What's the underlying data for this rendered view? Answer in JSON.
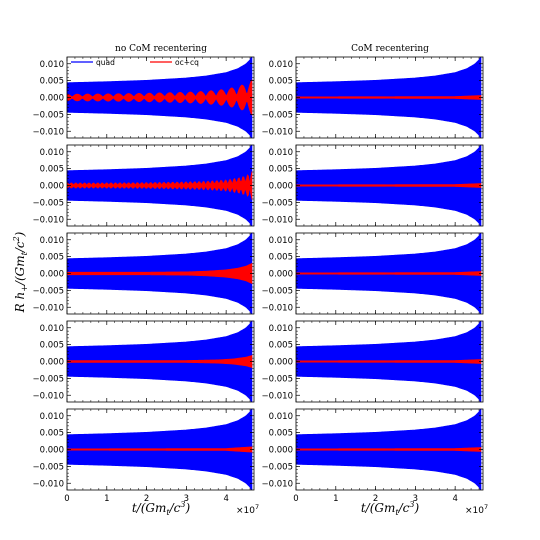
{
  "figure": {
    "col_titles": [
      "no CoM recentering",
      "CoM recentering"
    ],
    "ylabel": "R h+/(Gmt/c²)",
    "ylabel_parts": {
      "main": "R h",
      "sub1": "+",
      "mid": "/(Gm",
      "sub2": "t",
      "end": "/c",
      "sup": "2",
      "close": ")"
    },
    "xlabel_parts": {
      "main": "t/(Gm",
      "sub": "t",
      "end": "/c",
      "sup": "3",
      "close": ")"
    },
    "x_multiplier_parts": {
      "base": "×10",
      "sup": "7"
    },
    "legend": [
      {
        "label": "quad",
        "color": "#0000ff"
      },
      {
        "label": "oc+cq",
        "color": "#ff0000"
      }
    ],
    "colors": {
      "quad": "#0000ff",
      "oc_cq": "#ff0000"
    }
  },
  "chart_data": [
    {
      "type": "line",
      "panel": "row1-left",
      "title": "no CoM recentering",
      "ylim": [
        -0.012,
        0.012
      ],
      "xlim": [
        0,
        4.7
      ],
      "yticks": [
        "0.010",
        "0.005",
        "0.000",
        "−0.005",
        "−0.010"
      ],
      "xticks": [],
      "legend": [
        "quad",
        "oc+cq"
      ],
      "series": [
        {
          "name": "quad",
          "envelope": {
            "x": [
              0,
              1,
              2,
              3,
              3.5,
              4.0,
              4.3,
              4.5,
              4.6,
              4.65
            ],
            "amplitude": [
              0.0044,
              0.0047,
              0.0051,
              0.0058,
              0.0064,
              0.0074,
              0.0086,
              0.01,
              0.0112,
              0.0125
            ]
          }
        },
        {
          "name": "oc+cq",
          "modulated": true,
          "beat_count": 18,
          "envelope": {
            "x": [
              0,
              1,
              2,
              3,
              3.5,
              4.0,
              4.3,
              4.5,
              4.6,
              4.65
            ],
            "amplitude": [
              0.001,
              0.0011,
              0.0013,
              0.0016,
              0.0019,
              0.0025,
              0.0033,
              0.0042,
              0.0048,
              0.0052
            ]
          }
        }
      ]
    },
    {
      "type": "line",
      "panel": "row1-right",
      "title": "CoM recentering",
      "ylim": [
        -0.012,
        0.012
      ],
      "xlim": [
        0,
        4.7
      ],
      "yticks": [
        "0.010",
        "0.005",
        "0.000",
        "−0.005",
        "−0.010"
      ],
      "xticks": [],
      "series": [
        {
          "name": "quad",
          "envelope": {
            "x": [
              0,
              1,
              2,
              3,
              3.5,
              4.0,
              4.3,
              4.5,
              4.6,
              4.65
            ],
            "amplitude": [
              0.0044,
              0.0047,
              0.0051,
              0.0058,
              0.0064,
              0.0074,
              0.0086,
              0.01,
              0.0112,
              0.0125
            ]
          }
        },
        {
          "name": "oc+cq",
          "modulated": false,
          "envelope": {
            "x": [
              0,
              4.0,
              4.65
            ],
            "amplitude": [
              0.0002,
              0.0003,
              0.0006
            ]
          }
        }
      ]
    },
    {
      "type": "line",
      "panel": "row2-left",
      "ylim": [
        -0.012,
        0.012
      ],
      "xlim": [
        0,
        4.7
      ],
      "yticks": [
        "0.010",
        "0.005",
        "0.000",
        "−0.005",
        "−0.010"
      ],
      "xticks": [],
      "series": [
        {
          "name": "quad",
          "envelope": {
            "x": [
              0,
              1,
              2,
              3,
              3.5,
              4.0,
              4.3,
              4.5,
              4.6,
              4.65
            ],
            "amplitude": [
              0.0044,
              0.0047,
              0.0051,
              0.0058,
              0.0064,
              0.0074,
              0.0086,
              0.01,
              0.0112,
              0.0125
            ]
          }
        },
        {
          "name": "oc+cq",
          "modulated": true,
          "beat_count": 42,
          "envelope": {
            "x": [
              0,
              1,
              2,
              3,
              3.5,
              4.0,
              4.3,
              4.5,
              4.6,
              4.65
            ],
            "amplitude": [
              0.0008,
              0.0008,
              0.0009,
              0.0011,
              0.0013,
              0.0017,
              0.0023,
              0.003,
              0.0036,
              0.0042
            ]
          }
        }
      ]
    },
    {
      "type": "line",
      "panel": "row2-right",
      "ylim": [
        -0.012,
        0.012
      ],
      "xlim": [
        0,
        4.7
      ],
      "yticks": [
        "0.010",
        "0.005",
        "0.000",
        "−0.005",
        "−0.010"
      ],
      "xticks": [],
      "series": [
        {
          "name": "quad",
          "envelope": {
            "x": [
              0,
              1,
              2,
              3,
              3.5,
              4.0,
              4.3,
              4.5,
              4.6,
              4.65
            ],
            "amplitude": [
              0.0044,
              0.0047,
              0.0051,
              0.0058,
              0.0064,
              0.0074,
              0.0086,
              0.01,
              0.0112,
              0.0125
            ]
          }
        },
        {
          "name": "oc+cq",
          "modulated": false,
          "envelope": {
            "x": [
              0,
              4.0,
              4.65
            ],
            "amplitude": [
              0.0002,
              0.0003,
              0.0006
            ]
          }
        }
      ]
    },
    {
      "type": "line",
      "panel": "row3-left",
      "ylim": [
        -0.012,
        0.012
      ],
      "xlim": [
        0,
        4.7
      ],
      "yticks": [
        "0.010",
        "0.005",
        "0.000",
        "−0.005",
        "−0.010"
      ],
      "xticks": [],
      "series": [
        {
          "name": "quad",
          "envelope": {
            "x": [
              0,
              1,
              2,
              3,
              3.5,
              4.0,
              4.3,
              4.5,
              4.6,
              4.65
            ],
            "amplitude": [
              0.0044,
              0.0047,
              0.0051,
              0.0058,
              0.0064,
              0.0074,
              0.0086,
              0.01,
              0.0112,
              0.0125
            ]
          }
        },
        {
          "name": "oc+cq",
          "modulated": false,
          "envelope": {
            "x": [
              0,
              2,
              3,
              3.5,
              4.0,
              4.3,
              4.5,
              4.65
            ],
            "amplitude": [
              0.0004,
              0.0004,
              0.0005,
              0.0007,
              0.0011,
              0.0016,
              0.0022,
              0.003
            ]
          }
        }
      ]
    },
    {
      "type": "line",
      "panel": "row3-right",
      "ylim": [
        -0.012,
        0.012
      ],
      "xlim": [
        0,
        4.7
      ],
      "yticks": [
        "0.010",
        "0.005",
        "0.000",
        "−0.005",
        "−0.010"
      ],
      "xticks": [],
      "series": [
        {
          "name": "quad",
          "envelope": {
            "x": [
              0,
              1,
              2,
              3,
              3.5,
              4.0,
              4.3,
              4.5,
              4.6,
              4.65
            ],
            "amplitude": [
              0.0044,
              0.0047,
              0.0051,
              0.0058,
              0.0064,
              0.0074,
              0.0086,
              0.01,
              0.0112,
              0.0125
            ]
          }
        },
        {
          "name": "oc+cq",
          "modulated": false,
          "envelope": {
            "x": [
              0,
              4.0,
              4.65
            ],
            "amplitude": [
              0.0002,
              0.0003,
              0.0006
            ]
          }
        }
      ]
    },
    {
      "type": "line",
      "panel": "row4-left",
      "ylim": [
        -0.012,
        0.012
      ],
      "xlim": [
        0,
        4.7
      ],
      "yticks": [
        "0.010",
        "0.005",
        "0.000",
        "−0.005",
        "−0.010"
      ],
      "xticks": [],
      "series": [
        {
          "name": "quad",
          "envelope": {
            "x": [
              0,
              1,
              2,
              3,
              3.5,
              4.0,
              4.3,
              4.5,
              4.6,
              4.65
            ],
            "amplitude": [
              0.0044,
              0.0047,
              0.0051,
              0.0058,
              0.0064,
              0.0074,
              0.0086,
              0.01,
              0.0112,
              0.0125
            ]
          }
        },
        {
          "name": "oc+cq",
          "modulated": false,
          "envelope": {
            "x": [
              0,
              3,
              3.8,
              4.2,
              4.5,
              4.65
            ],
            "amplitude": [
              0.0003,
              0.0003,
              0.0005,
              0.0008,
              0.0013,
              0.0018
            ]
          }
        }
      ]
    },
    {
      "type": "line",
      "panel": "row4-right",
      "ylim": [
        -0.012,
        0.012
      ],
      "xlim": [
        0,
        4.7
      ],
      "yticks": [
        "0.010",
        "0.005",
        "0.000",
        "−0.005",
        "−0.010"
      ],
      "xticks": [],
      "series": [
        {
          "name": "quad",
          "envelope": {
            "x": [
              0,
              1,
              2,
              3,
              3.5,
              4.0,
              4.3,
              4.5,
              4.6,
              4.65
            ],
            "amplitude": [
              0.0044,
              0.0047,
              0.0051,
              0.0058,
              0.0064,
              0.0074,
              0.0086,
              0.01,
              0.0112,
              0.0125
            ]
          }
        },
        {
          "name": "oc+cq",
          "modulated": false,
          "envelope": {
            "x": [
              0,
              4.0,
              4.65
            ],
            "amplitude": [
              0.0002,
              0.0003,
              0.0006
            ]
          }
        }
      ]
    },
    {
      "type": "line",
      "panel": "row5-left",
      "ylim": [
        -0.012,
        0.012
      ],
      "xlim": [
        0,
        4.7
      ],
      "yticks": [
        "0.010",
        "0.005",
        "0.000",
        "−0.005",
        "−0.010"
      ],
      "xticks": [
        "0",
        "1",
        "2",
        "3",
        "4"
      ],
      "xlabel": "t/(Gmt/c³)",
      "x_multiplier": "×10⁷",
      "series": [
        {
          "name": "quad",
          "envelope": {
            "x": [
              0,
              1,
              2,
              3,
              3.5,
              4.0,
              4.3,
              4.5,
              4.6,
              4.65
            ],
            "amplitude": [
              0.0044,
              0.0047,
              0.0051,
              0.0058,
              0.0064,
              0.0074,
              0.0086,
              0.01,
              0.0112,
              0.0125
            ]
          }
        },
        {
          "name": "oc+cq",
          "modulated": false,
          "envelope": {
            "x": [
              0,
              4.0,
              4.65
            ],
            "amplitude": [
              0.0002,
              0.0003,
              0.0008
            ]
          }
        }
      ]
    },
    {
      "type": "line",
      "panel": "row5-right",
      "ylim": [
        -0.012,
        0.012
      ],
      "xlim": [
        0,
        4.7
      ],
      "yticks": [
        "0.010",
        "0.005",
        "0.000",
        "−0.005",
        "−0.010"
      ],
      "xticks": [
        "0",
        "1",
        "2",
        "3",
        "4"
      ],
      "xlabel": "t/(Gmt/c³)",
      "x_multiplier": "×10⁷",
      "series": [
        {
          "name": "quad",
          "envelope": {
            "x": [
              0,
              1,
              2,
              3,
              3.5,
              4.0,
              4.3,
              4.5,
              4.6,
              4.65
            ],
            "amplitude": [
              0.0044,
              0.0047,
              0.0051,
              0.0058,
              0.0064,
              0.0074,
              0.0086,
              0.01,
              0.0112,
              0.0125
            ]
          }
        },
        {
          "name": "oc+cq",
          "modulated": false,
          "envelope": {
            "x": [
              0,
              4.0,
              4.65
            ],
            "amplitude": [
              0.0002,
              0.0003,
              0.0006
            ]
          }
        }
      ]
    }
  ]
}
